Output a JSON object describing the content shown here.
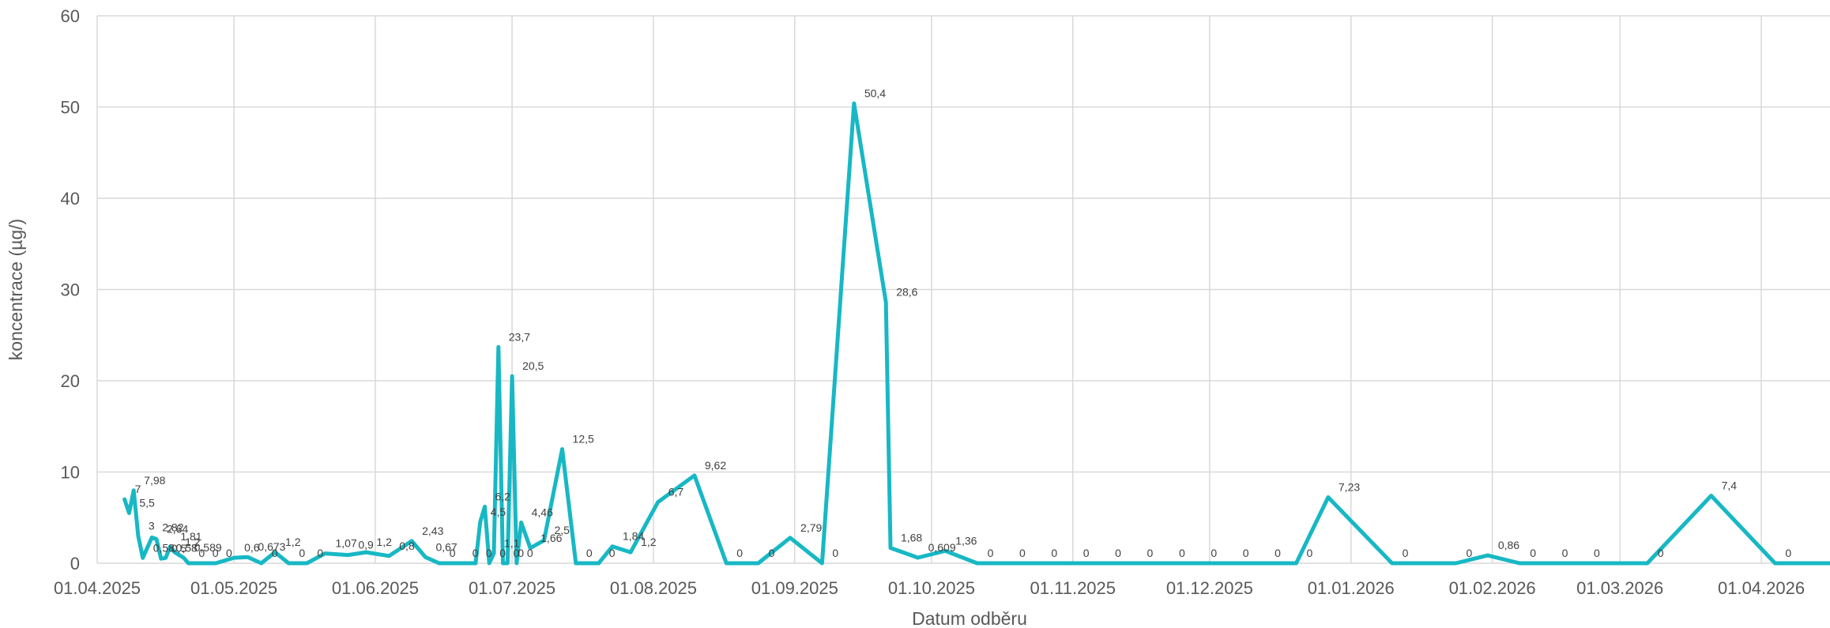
{
  "chart_data": {
    "type": "line",
    "title": "",
    "xlabel": "Datum odběru",
    "ylabel": "koncentrace  (µg/)",
    "ylim": [
      0,
      60
    ],
    "y_ticks": [
      "0",
      "10",
      "20",
      "30",
      "40",
      "50",
      "60"
    ],
    "x_range": [
      "2025-04-01",
      "2026-05-01"
    ],
    "x_ticks": [
      "01.04.2025",
      "01.05.2025",
      "01.06.2025",
      "01.07.2025",
      "01.08.2025",
      "01.09.2025",
      "01.10.2025",
      "01.11.2025",
      "01.12.2025",
      "01.01.2026",
      "01.02.2026",
      "01.03.2026",
      "01.04.2026"
    ],
    "grid": true,
    "legend": "none",
    "series": [
      {
        "color": "#17b8c4",
        "points": [
          {
            "x": "2025-04-07",
            "y": 7,
            "label": "7"
          },
          {
            "x": "2025-04-08",
            "y": 5.5,
            "label": "5,5"
          },
          {
            "x": "2025-04-09",
            "y": 7.98,
            "label": "7,98"
          },
          {
            "x": "2025-04-10",
            "y": 3,
            "label": "3"
          },
          {
            "x": "2025-04-11",
            "y": 0.58,
            "label": "0,58"
          },
          {
            "x": "2025-04-13",
            "y": 2.82,
            "label": "2,82"
          },
          {
            "x": "2025-04-14",
            "y": 2.64,
            "label": "2,64"
          },
          {
            "x": "2025-04-15",
            "y": 0.5,
            "label": "0,5"
          },
          {
            "x": "2025-04-16",
            "y": 0.58,
            "label": "0,58"
          },
          {
            "x": "2025-04-17",
            "y": 1.81,
            "label": "1,81"
          },
          {
            "x": "2025-04-18",
            "y": 1.2,
            "label": "1,2"
          },
          {
            "x": "2025-04-20",
            "y": 0.589,
            "label": "0,589"
          },
          {
            "x": "2025-04-21",
            "y": 0,
            "label": "0"
          },
          {
            "x": "2025-04-24",
            "y": 0,
            "label": "0"
          },
          {
            "x": "2025-04-27",
            "y": 0,
            "label": "0"
          },
          {
            "x": "2025-05-01",
            "y": 0.6,
            "label": "0,6"
          },
          {
            "x": "2025-05-04",
            "y": 0.673,
            "label": "0,673"
          },
          {
            "x": "2025-05-07",
            "y": 0,
            "label": "0"
          },
          {
            "x": "2025-05-10",
            "y": 1.2,
            "label": "1,2"
          },
          {
            "x": "2025-05-13",
            "y": 0,
            "label": "0"
          },
          {
            "x": "2025-05-17",
            "y": 0,
            "label": "0"
          },
          {
            "x": "2025-05-21",
            "y": 1.07,
            "label": "1,07"
          },
          {
            "x": "2025-05-26",
            "y": 0.9,
            "label": "0,9"
          },
          {
            "x": "2025-05-30",
            "y": 1.2,
            "label": "1,2"
          },
          {
            "x": "2025-06-04",
            "y": 0.8,
            "label": "0,8"
          },
          {
            "x": "2025-06-09",
            "y": 2.43,
            "label": "2,43"
          },
          {
            "x": "2025-06-12",
            "y": 0.67,
            "label": "0,67"
          },
          {
            "x": "2025-06-15",
            "y": 0,
            "label": "0"
          },
          {
            "x": "2025-06-20",
            "y": 0,
            "label": "0"
          },
          {
            "x": "2025-06-23",
            "y": 0,
            "label": "0"
          },
          {
            "x": "2025-06-24",
            "y": 4.5,
            "label": "4,5"
          },
          {
            "x": "2025-06-25",
            "y": 6.2,
            "label": "6,2"
          },
          {
            "x": "2025-06-26",
            "y": 0,
            "label": "0"
          },
          {
            "x": "2025-06-27",
            "y": 1.1,
            "label": "1,1"
          },
          {
            "x": "2025-06-28",
            "y": 23.7,
            "label": "23,7"
          },
          {
            "x": "2025-06-29",
            "y": 0,
            "label": "0"
          },
          {
            "x": "2025-06-30",
            "y": 0,
            "label": "0"
          },
          {
            "x": "2025-07-01",
            "y": 20.5,
            "label": "20,5"
          },
          {
            "x": "2025-07-02",
            "y": 0,
            "label": "0"
          },
          {
            "x": "2025-07-03",
            "y": 4.46,
            "label": "4,46"
          },
          {
            "x": "2025-07-05",
            "y": 1.66,
            "label": "1,66"
          },
          {
            "x": "2025-07-08",
            "y": 2.5,
            "label": "2,5"
          },
          {
            "x": "2025-07-12",
            "y": 12.5,
            "label": "12,5"
          },
          {
            "x": "2025-07-15",
            "y": 0,
            "label": "0"
          },
          {
            "x": "2025-07-20",
            "y": 0,
            "label": "0"
          },
          {
            "x": "2025-07-23",
            "y": 1.84,
            "label": "1,84"
          },
          {
            "x": "2025-07-27",
            "y": 1.2,
            "label": "1,2"
          },
          {
            "x": "2025-08-02",
            "y": 6.7,
            "label": "6,7"
          },
          {
            "x": "2025-08-10",
            "y": 9.62,
            "label": "9,62"
          },
          {
            "x": "2025-08-17",
            "y": 0,
            "label": "0"
          },
          {
            "x": "2025-08-24",
            "y": 0,
            "label": "0"
          },
          {
            "x": "2025-08-31",
            "y": 2.79,
            "label": "2,79"
          },
          {
            "x": "2025-09-07",
            "y": 0,
            "label": "0"
          },
          {
            "x": "2025-09-14",
            "y": 50.4,
            "label": "50,4"
          },
          {
            "x": "2025-09-21",
            "y": 28.6,
            "label": "28,6"
          },
          {
            "x": "2025-09-22",
            "y": 1.68,
            "label": "1,68"
          },
          {
            "x": "2025-09-28",
            "y": 0.609,
            "label": "0,609"
          },
          {
            "x": "2025-10-04",
            "y": 1.36,
            "label": "1,36"
          },
          {
            "x": "2025-10-11",
            "y": 0,
            "label": "0"
          },
          {
            "x": "2025-10-18",
            "y": 0,
            "label": "0"
          },
          {
            "x": "2025-10-25",
            "y": 0,
            "label": "0"
          },
          {
            "x": "2025-11-01",
            "y": 0,
            "label": "0"
          },
          {
            "x": "2025-11-08",
            "y": 0,
            "label": "0"
          },
          {
            "x": "2025-11-15",
            "y": 0,
            "label": "0"
          },
          {
            "x": "2025-11-22",
            "y": 0,
            "label": "0"
          },
          {
            "x": "2025-11-29",
            "y": 0,
            "label": "0"
          },
          {
            "x": "2025-12-06",
            "y": 0,
            "label": "0"
          },
          {
            "x": "2025-12-13",
            "y": 0,
            "label": "0"
          },
          {
            "x": "2025-12-20",
            "y": 0,
            "label": "0"
          },
          {
            "x": "2025-12-27",
            "y": 7.23,
            "label": "7,23"
          },
          {
            "x": "2026-01-10",
            "y": 0,
            "label": "0"
          },
          {
            "x": "2026-01-24",
            "y": 0,
            "label": "0"
          },
          {
            "x": "2026-01-31",
            "y": 0.86,
            "label": "0,86"
          },
          {
            "x": "2026-02-07",
            "y": 0,
            "label": "0"
          },
          {
            "x": "2026-02-14",
            "y": 0,
            "label": "0"
          },
          {
            "x": "2026-02-21",
            "y": 0,
            "label": "0"
          },
          {
            "x": "2026-03-07",
            "y": 0,
            "label": "0"
          },
          {
            "x": "2026-03-21",
            "y": 7.4,
            "label": "7,4"
          },
          {
            "x": "2026-04-04",
            "y": 0,
            "label": "0"
          },
          {
            "x": "2026-04-18",
            "y": 0,
            "label": "0"
          }
        ]
      }
    ],
    "extra_labels": [
      {
        "x": "2026-04-27",
        "y": 0,
        "label": "0"
      }
    ]
  }
}
